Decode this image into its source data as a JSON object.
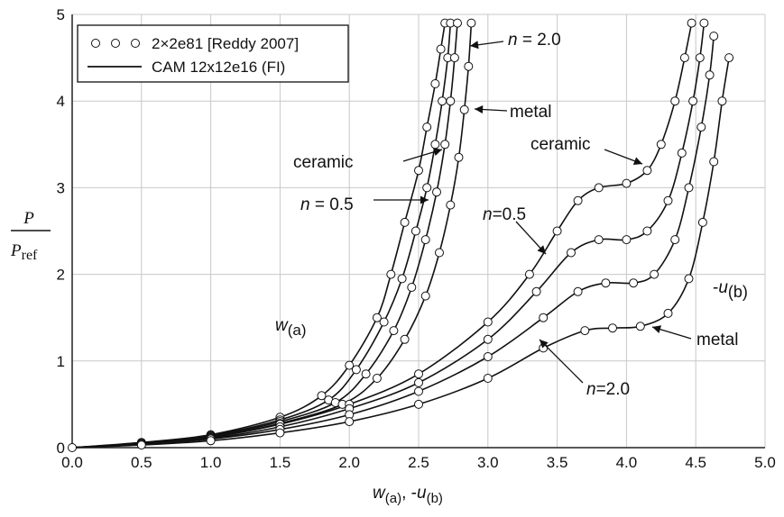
{
  "chart_data": {
    "type": "line",
    "title": "",
    "xlabel": {
      "w": "w",
      "w_sub": "(a)",
      "sep": ", -",
      "u": "u",
      "u_sub": "(b)"
    },
    "ylabel": {
      "num": "P",
      "den": "P",
      "den_sub": "ref"
    },
    "xlim": [
      0,
      5
    ],
    "ylim": [
      0,
      5
    ],
    "x_ticks": [
      "0.0",
      "0.5",
      "1.0",
      "1.5",
      "2.0",
      "2.5",
      "3.0",
      "3.5",
      "4.0",
      "4.5",
      "5.0"
    ],
    "y_ticks": [
      "0",
      "1",
      "2",
      "3",
      "4",
      "5"
    ],
    "grid": true,
    "legend": {
      "position": "top-left",
      "entries": [
        {
          "marker": "open-circle",
          "label": "2×2e81 [Reddy 2007]"
        },
        {
          "marker": "line",
          "label": "CAM 12x12e16 (FI)"
        }
      ]
    },
    "series": [
      {
        "name": "w(a) ceramic",
        "x": [
          0,
          0.5,
          1.0,
          1.5,
          1.8,
          2.0,
          2.2,
          2.3,
          2.4,
          2.5,
          2.56,
          2.62,
          2.66,
          2.69
        ],
        "y": [
          0,
          0.06,
          0.15,
          0.35,
          0.6,
          0.95,
          1.5,
          2.0,
          2.6,
          3.2,
          3.7,
          4.2,
          4.6,
          4.9
        ]
      },
      {
        "name": "w(a) n=0.5",
        "x": [
          0,
          0.5,
          1.0,
          1.5,
          1.85,
          2.05,
          2.25,
          2.38,
          2.48,
          2.56,
          2.62,
          2.67,
          2.71,
          2.73
        ],
        "y": [
          0,
          0.05,
          0.14,
          0.32,
          0.55,
          0.9,
          1.45,
          1.95,
          2.5,
          3.0,
          3.5,
          4.0,
          4.5,
          4.9
        ]
      },
      {
        "name": "w(a) n=2.0",
        "x": [
          0,
          0.5,
          1.0,
          1.5,
          1.9,
          2.12,
          2.32,
          2.45,
          2.55,
          2.63,
          2.69,
          2.73,
          2.76,
          2.78
        ],
        "y": [
          0,
          0.05,
          0.13,
          0.3,
          0.52,
          0.85,
          1.35,
          1.85,
          2.4,
          2.95,
          3.5,
          4.0,
          4.5,
          4.9
        ]
      },
      {
        "name": "w(a) metal",
        "x": [
          0,
          0.5,
          1.0,
          1.5,
          1.95,
          2.2,
          2.4,
          2.55,
          2.65,
          2.73,
          2.79,
          2.83,
          2.86,
          2.88
        ],
        "y": [
          0,
          0.05,
          0.12,
          0.28,
          0.5,
          0.8,
          1.25,
          1.75,
          2.25,
          2.8,
          3.35,
          3.9,
          4.4,
          4.9
        ]
      },
      {
        "name": "-u(b) ceramic",
        "x": [
          0,
          0.5,
          1.0,
          1.5,
          2.0,
          2.5,
          3.0,
          3.3,
          3.5,
          3.65,
          3.8,
          4.0,
          4.15,
          4.25,
          4.35,
          4.42,
          4.47
        ],
        "y": [
          0,
          0.05,
          0.12,
          0.27,
          0.5,
          0.85,
          1.45,
          2.0,
          2.5,
          2.85,
          3.0,
          3.05,
          3.2,
          3.5,
          4.0,
          4.5,
          4.9
        ]
      },
      {
        "name": "-u(b) n=0.5",
        "x": [
          0,
          0.5,
          1.0,
          1.5,
          2.0,
          2.5,
          3.0,
          3.35,
          3.6,
          3.8,
          4.0,
          4.15,
          4.3,
          4.4,
          4.48,
          4.53,
          4.56
        ],
        "y": [
          0,
          0.05,
          0.11,
          0.24,
          0.45,
          0.75,
          1.25,
          1.8,
          2.25,
          2.4,
          2.4,
          2.5,
          2.85,
          3.4,
          4.0,
          4.5,
          4.9
        ]
      },
      {
        "name": "-u(b) n=2.0",
        "x": [
          0,
          0.5,
          1.0,
          1.5,
          2.0,
          2.5,
          3.0,
          3.4,
          3.65,
          3.85,
          4.05,
          4.2,
          4.35,
          4.45,
          4.54,
          4.6,
          4.63
        ],
        "y": [
          0,
          0.04,
          0.1,
          0.21,
          0.38,
          0.65,
          1.05,
          1.5,
          1.8,
          1.9,
          1.9,
          2.0,
          2.4,
          3.0,
          3.7,
          4.3,
          4.75
        ]
      },
      {
        "name": "-u(b) metal",
        "x": [
          0,
          0.5,
          1.0,
          1.5,
          2.0,
          2.5,
          3.0,
          3.4,
          3.7,
          3.9,
          4.1,
          4.3,
          4.45,
          4.55,
          4.63,
          4.69,
          4.74
        ],
        "y": [
          0,
          0.03,
          0.08,
          0.17,
          0.3,
          0.5,
          0.8,
          1.15,
          1.35,
          1.38,
          1.4,
          1.55,
          1.95,
          2.6,
          3.3,
          4.0,
          4.5
        ]
      }
    ],
    "annotations": [
      {
        "id": "n20-left",
        "parts": [
          {
            "t": "n",
            "italic": true
          },
          {
            "t": " = 2.0",
            "italic": false
          }
        ]
      },
      {
        "id": "metal-left",
        "parts": [
          {
            "t": "metal",
            "italic": false
          }
        ]
      },
      {
        "id": "ceramic-left",
        "parts": [
          {
            "t": "ceramic",
            "italic": false
          }
        ]
      },
      {
        "id": "n05-left",
        "parts": [
          {
            "t": "n",
            "italic": true
          },
          {
            "t": " = 0.5",
            "italic": false
          }
        ]
      },
      {
        "id": "wa-label",
        "parts": [
          {
            "t": "w",
            "italic": true,
            "big": true
          },
          {
            "t": "(a)",
            "sub": true
          }
        ]
      },
      {
        "id": "ceramic-right",
        "parts": [
          {
            "t": "ceramic",
            "italic": false
          }
        ]
      },
      {
        "id": "n05-right",
        "parts": [
          {
            "t": "n",
            "italic": true
          },
          {
            "t": "=0.5",
            "italic": false
          }
        ]
      },
      {
        "id": "ub-label",
        "parts": [
          {
            "t": "-",
            "big": true
          },
          {
            "t": "u",
            "italic": true,
            "big": true
          },
          {
            "t": "(b)",
            "sub": true
          }
        ]
      },
      {
        "id": "metal-right",
        "parts": [
          {
            "t": "metal",
            "italic": false
          }
        ]
      },
      {
        "id": "n20-right",
        "parts": [
          {
            "t": "n",
            "italic": true
          },
          {
            "t": "=2.0",
            "italic": false
          }
        ]
      }
    ]
  }
}
